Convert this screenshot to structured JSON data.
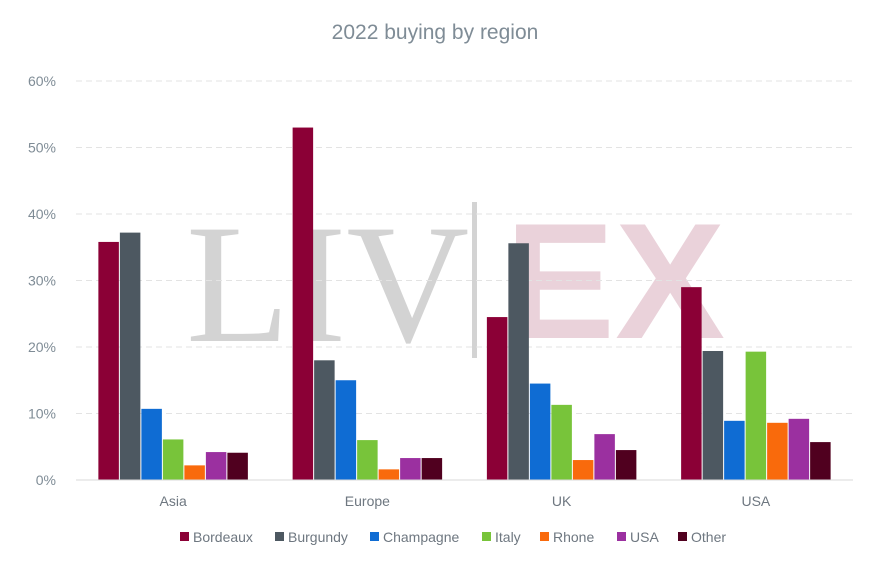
{
  "chart_data": {
    "type": "bar",
    "title": "2022 buying by region",
    "categories": [
      "Asia",
      "Europe",
      "UK",
      "USA"
    ],
    "ylim": [
      0,
      60
    ],
    "yticks": [
      0,
      10,
      20,
      30,
      40,
      50,
      60
    ],
    "ytick_labels": [
      "0%",
      "10%",
      "20%",
      "30%",
      "40%",
      "50%",
      "60%"
    ],
    "grid": true,
    "legend_position": "bottom",
    "series": [
      {
        "name": "Bordeaux",
        "color": "#8b0036",
        "values": [
          35.8,
          53.0,
          24.5,
          29.0
        ]
      },
      {
        "name": "Burgundy",
        "color": "#4d5861",
        "values": [
          37.2,
          18.0,
          35.6,
          19.4
        ]
      },
      {
        "name": "Champagne",
        "color": "#0f6cd3",
        "values": [
          10.7,
          15.0,
          14.5,
          8.9
        ]
      },
      {
        "name": "Italy",
        "color": "#78c43a",
        "values": [
          6.1,
          6.0,
          11.3,
          19.3
        ]
      },
      {
        "name": "Rhone",
        "color": "#f96a0c",
        "values": [
          2.2,
          1.6,
          3.0,
          8.6
        ]
      },
      {
        "name": "USA",
        "color": "#9b30a0",
        "values": [
          4.2,
          3.3,
          6.9,
          9.2
        ]
      },
      {
        "name": "Other",
        "color": "#50001f",
        "values": [
          4.1,
          3.3,
          4.5,
          5.7
        ]
      }
    ]
  },
  "watermark": {
    "left": "LIV",
    "right": "EX"
  }
}
